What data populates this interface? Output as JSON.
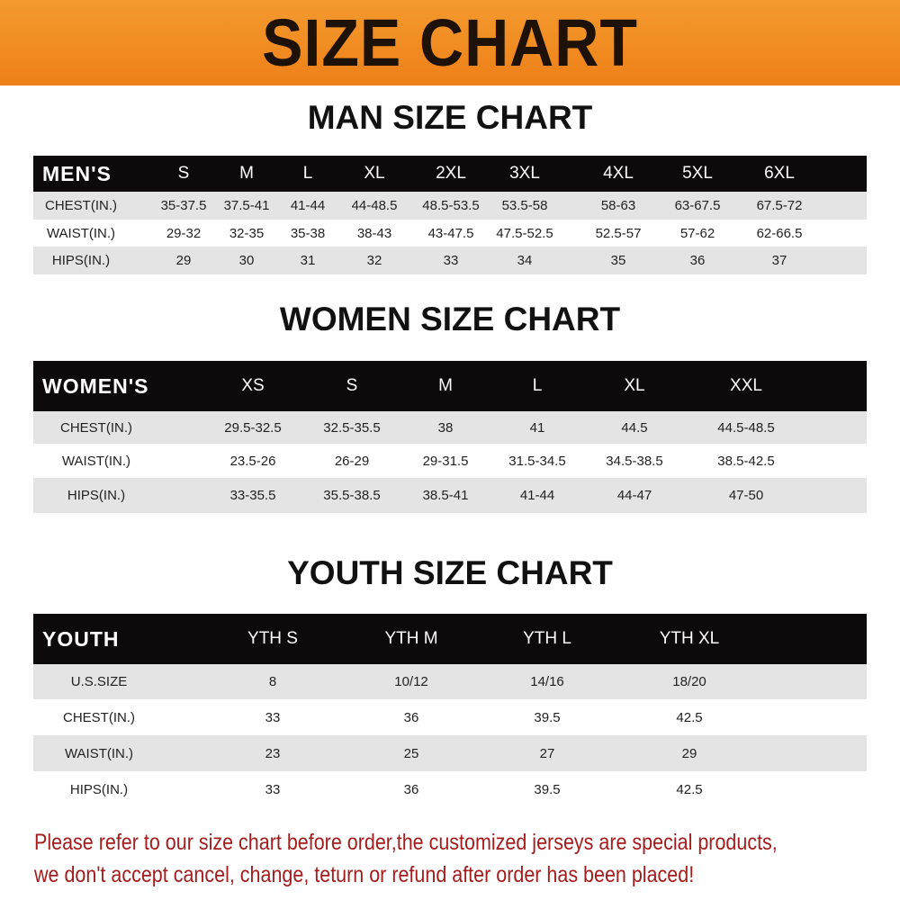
{
  "banner_title": "SIZE CHART",
  "men": {
    "title": "MAN SIZE CHART",
    "header": [
      "MEN'S",
      "S",
      "M",
      "L",
      "XL",
      "2XL",
      "3XL",
      "4XL",
      "5XL",
      "6XL"
    ],
    "rows": [
      [
        "CHEST(IN.)",
        "35-37.5",
        "37.5-41",
        "41-44",
        "44-48.5",
        "48.5-53.5",
        "53.5-58",
        "58-63",
        "63-67.5",
        "67.5-72"
      ],
      [
        "WAIST(IN.)",
        "29-32",
        "32-35",
        "35-38",
        "38-43",
        "43-47.5",
        "47.5-52.5",
        "52.5-57",
        "57-62",
        "62-66.5"
      ],
      [
        "HIPS(IN.)",
        "29",
        "30",
        "31",
        "32",
        "33",
        "34",
        "35",
        "36",
        "37"
      ]
    ]
  },
  "women": {
    "title": "WOMEN SIZE CHART",
    "header": [
      "WOMEN'S",
      "XS",
      "S",
      "M",
      "L",
      "XL",
      "XXL"
    ],
    "rows": [
      [
        "CHEST(IN.)",
        "29.5-32.5",
        "32.5-35.5",
        "38",
        "41",
        "44.5",
        "44.5-48.5"
      ],
      [
        "WAIST(IN.)",
        "23.5-26",
        "26-29",
        "29-31.5",
        "31.5-34.5",
        "34.5-38.5",
        "38.5-42.5"
      ],
      [
        "HIPS(IN.)",
        "33-35.5",
        "35.5-38.5",
        "38.5-41",
        "41-44",
        "44-47",
        "47-50"
      ]
    ]
  },
  "youth": {
    "title": "YOUTH SIZE CHART",
    "header": [
      "YOUTH",
      "YTH S",
      "YTH M",
      "YTH L",
      "YTH XL"
    ],
    "rows": [
      [
        "U.S.SIZE",
        "8",
        "10/12",
        "14/16",
        "18/20"
      ],
      [
        "CHEST(IN.)",
        "33",
        "36",
        "39.5",
        "42.5"
      ],
      [
        "WAIST(IN.)",
        "23",
        "25",
        "27",
        "29"
      ],
      [
        "HIPS(IN.)",
        "33",
        "36",
        "39.5",
        "42.5"
      ]
    ]
  },
  "footer": {
    "line1": "Please refer to our size chart before order,the customized jerseys are special products,",
    "line2": "we don't accept cancel, change, teturn or refund after order has been placed!"
  },
  "colors": {
    "banner": "#f08a1e",
    "header_row": "#0c0a0a",
    "stripe": "#e4e4e4",
    "notice": "#a51c1c"
  }
}
